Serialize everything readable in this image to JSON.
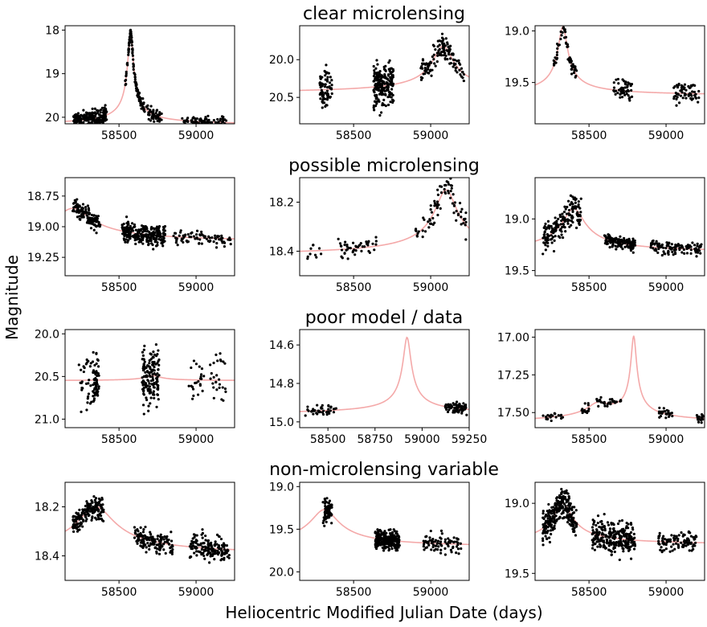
{
  "figure": {
    "ylabel": "Magnitude",
    "xlabel": "Heliocentric Modified Julian Date (days)",
    "row_titles": [
      "clear microlensing",
      "possible microlensing",
      "poor model / data",
      "non-microlensing variable"
    ]
  },
  "chart_data": [
    {
      "type": "scatter",
      "row": 0,
      "col": 0,
      "xlim": [
        58150,
        59250
      ],
      "ylim": [
        20.15,
        17.9
      ],
      "xticks": [
        58500,
        59000
      ],
      "yticks": [
        18,
        19,
        20
      ],
      "ytick_labels": [
        "18",
        "19",
        "20"
      ],
      "model": {
        "base": 20.18,
        "events": [
          {
            "t0": 58575,
            "amp": 2.1,
            "w": 30
          }
        ]
      },
      "segments": [
        {
          "x0": 58200,
          "x1": 58420,
          "n": 220,
          "scatter": 0.13
        },
        {
          "x0": 58540,
          "x1": 58660,
          "n": 120,
          "scatter": 0.08
        },
        {
          "x0": 58660,
          "x1": 58780,
          "n": 60,
          "scatter": 0.1
        },
        {
          "x0": 58900,
          "x1": 59200,
          "n": 90,
          "scatter": 0.08
        }
      ]
    },
    {
      "type": "scatter",
      "row": 0,
      "col": 1,
      "xlim": [
        58150,
        59250
      ],
      "ylim": [
        20.85,
        19.55
      ],
      "xticks": [
        58500,
        59000
      ],
      "yticks": [
        20.0,
        20.5
      ],
      "ytick_labels": [
        "20.0",
        "20.5"
      ],
      "model": {
        "base": 20.45,
        "events": [
          {
            "t0": 59080,
            "amp": 0.63,
            "w": 110
          }
        ]
      },
      "segments": [
        {
          "x0": 58280,
          "x1": 58360,
          "n": 70,
          "scatter": 0.2
        },
        {
          "x0": 58630,
          "x1": 58760,
          "n": 200,
          "scatter": 0.2
        },
        {
          "x0": 58930,
          "x1": 59220,
          "n": 130,
          "scatter": 0.1
        }
      ]
    },
    {
      "type": "scatter",
      "row": 0,
      "col": 2,
      "xlim": [
        58150,
        59250
      ],
      "ylim": [
        19.9,
        18.95
      ],
      "xticks": [
        58500,
        59000
      ],
      "yticks": [
        19.0,
        19.5
      ],
      "ytick_labels": [
        "19.0",
        "19.5"
      ],
      "model": {
        "base": 19.63,
        "events": [
          {
            "t0": 58330,
            "amp": 0.67,
            "w": 50
          }
        ]
      },
      "segments": [
        {
          "x0": 58270,
          "x1": 58420,
          "n": 60,
          "scatter": 0.05
        },
        {
          "x0": 58650,
          "x1": 58780,
          "n": 50,
          "scatter": 0.08
        },
        {
          "x0": 59050,
          "x1": 59220,
          "n": 60,
          "scatter": 0.08
        }
      ]
    },
    {
      "type": "scatter",
      "row": 1,
      "col": 0,
      "xlim": [
        58150,
        59250
      ],
      "ylim": [
        19.4,
        18.6
      ],
      "xticks": [
        58500,
        59000
      ],
      "yticks": [
        18.75,
        19.0,
        19.25
      ],
      "ytick_labels": [
        "18.75",
        "19.00",
        "19.25"
      ],
      "model": {
        "base": 19.13,
        "events": [
          {
            "t0": 58200,
            "amp": 0.28,
            "w": 200
          }
        ]
      },
      "segments": [
        {
          "x0": 58200,
          "x1": 58380,
          "n": 130,
          "scatter": 0.05
        },
        {
          "x0": 58520,
          "x1": 58800,
          "n": 260,
          "scatter": 0.06
        },
        {
          "x0": 58850,
          "x1": 59230,
          "n": 80,
          "scatter": 0.04
        }
      ]
    },
    {
      "type": "scatter",
      "row": 1,
      "col": 1,
      "xlim": [
        58150,
        59250
      ],
      "ylim": [
        18.5,
        18.1
      ],
      "xticks": [
        58500,
        59000
      ],
      "yticks": [
        18.2,
        18.4
      ],
      "ytick_labels": [
        "18.2",
        "18.4"
      ],
      "model": {
        "base": 18.42,
        "events": [
          {
            "t0": 59100,
            "amp": 0.27,
            "w": 120
          }
        ]
      },
      "segments": [
        {
          "x0": 58200,
          "x1": 58300,
          "n": 10,
          "scatter": 0.04
        },
        {
          "x0": 58400,
          "x1": 58650,
          "n": 45,
          "scatter": 0.03
        },
        {
          "x0": 58900,
          "x1": 59230,
          "n": 80,
          "scatter": 0.04
        }
      ]
    },
    {
      "type": "scatter",
      "row": 1,
      "col": 2,
      "xlim": [
        58150,
        59250
      ],
      "ylim": [
        19.55,
        18.6
      ],
      "xticks": [
        58500,
        59000
      ],
      "yticks": [
        19.0,
        19.5
      ],
      "ytick_labels": [
        "19.0",
        "19.5"
      ],
      "model": {
        "base": 19.33,
        "events": [
          {
            "t0": 58400,
            "amp": 0.43,
            "w": 120
          }
        ]
      },
      "segments": [
        {
          "x0": 58200,
          "x1": 58450,
          "n": 170,
          "scatter": 0.1
        },
        {
          "x0": 58600,
          "x1": 58800,
          "n": 140,
          "scatter": 0.04
        },
        {
          "x0": 58900,
          "x1": 59230,
          "n": 120,
          "scatter": 0.04
        }
      ]
    },
    {
      "type": "scatter",
      "row": 2,
      "col": 0,
      "xlim": [
        58150,
        59250
      ],
      "ylim": [
        21.1,
        19.95
      ],
      "xticks": [
        58500,
        59000
      ],
      "yticks": [
        20.0,
        20.5,
        21.0
      ],
      "ytick_labels": [
        "20.0",
        "20.5",
        "21.0"
      ],
      "model": {
        "base": 20.55,
        "events": [
          {
            "t0": 58720,
            "amp": 0.06,
            "w": 80
          }
        ]
      },
      "segments": [
        {
          "x0": 58240,
          "x1": 58330,
          "n": 30,
          "scatter": 0.25
        },
        {
          "x0": 58330,
          "x1": 58370,
          "n": 60,
          "scatter": 0.2
        },
        {
          "x0": 58650,
          "x1": 58760,
          "n": 150,
          "scatter": 0.25
        },
        {
          "x0": 58950,
          "x1": 59200,
          "n": 50,
          "scatter": 0.2
        }
      ]
    },
    {
      "type": "scatter",
      "row": 2,
      "col": 1,
      "xlim": [
        58350,
        59250
      ],
      "ylim": [
        15.03,
        14.52
      ],
      "xticks": [
        58500,
        58750,
        59000,
        59250
      ],
      "yticks": [
        14.6,
        14.8,
        15.0
      ],
      "ytick_labels": [
        "14.6",
        "14.8",
        "15.0"
      ],
      "model": {
        "base": 14.96,
        "events": [
          {
            "t0": 58920,
            "amp": 0.4,
            "w": 35
          }
        ]
      },
      "segments": [
        {
          "x0": 58380,
          "x1": 58550,
          "n": 40,
          "scatter": 0.02
        },
        {
          "x0": 59120,
          "x1": 59240,
          "n": 70,
          "scatter": 0.02
        }
      ]
    },
    {
      "type": "scatter",
      "row": 2,
      "col": 2,
      "xlim": [
        58150,
        59250
      ],
      "ylim": [
        17.6,
        16.95
      ],
      "xticks": [
        58500,
        59000
      ],
      "yticks": [
        17.0,
        17.25,
        17.5
      ],
      "ytick_labels": [
        "17.00",
        "17.25",
        "17.50"
      ],
      "model": {
        "base": 17.57,
        "events": [
          {
            "t0": 58790,
            "amp": 0.55,
            "w": 30
          },
          {
            "t0": 58560,
            "amp": 0.1,
            "w": 120
          }
        ]
      },
      "segments": [
        {
          "x0": 58200,
          "x1": 58330,
          "n": 20,
          "scatter": 0.02
        },
        {
          "x0": 58450,
          "x1": 58500,
          "n": 15,
          "scatter": 0.03
        },
        {
          "x0": 58550,
          "x1": 58720,
          "n": 30,
          "scatter": 0.02
        },
        {
          "x0": 58950,
          "x1": 59050,
          "n": 30,
          "scatter": 0.02
        },
        {
          "x0": 59200,
          "x1": 59240,
          "n": 20,
          "scatter": 0.02
        }
      ]
    },
    {
      "type": "scatter",
      "row": 3,
      "col": 0,
      "xlim": [
        58150,
        59250
      ],
      "ylim": [
        18.5,
        18.1
      ],
      "xticks": [
        58500,
        59000
      ],
      "yticks": [
        18.2,
        18.4
      ],
      "ytick_labels": [
        "18.2",
        "18.4"
      ],
      "model": {
        "base": 18.4,
        "events": [
          {
            "t0": 58350,
            "amp": 0.2,
            "w": 200
          }
        ]
      },
      "segments": [
        {
          "x0": 58200,
          "x1": 58400,
          "n": 180,
          "scatter": 0.03
        },
        {
          "x0": 58600,
          "x1": 58850,
          "n": 150,
          "scatter": 0.03
        },
        {
          "x0": 58950,
          "x1": 59220,
          "n": 160,
          "scatter": 0.04
        }
      ]
    },
    {
      "type": "scatter",
      "row": 3,
      "col": 1,
      "xlim": [
        58150,
        59250
      ],
      "ylim": [
        20.1,
        18.95
      ],
      "xticks": [
        58500,
        59000
      ],
      "yticks": [
        19.0,
        19.5,
        20.0
      ],
      "ytick_labels": [
        "19.0",
        "19.5",
        "20.0"
      ],
      "model": {
        "base": 19.72,
        "events": [
          {
            "t0": 58310,
            "amp": 0.45,
            "w": 150
          }
        ]
      },
      "segments": [
        {
          "x0": 58300,
          "x1": 58360,
          "n": 70,
          "scatter": 0.1
        },
        {
          "x0": 58640,
          "x1": 58800,
          "n": 250,
          "scatter": 0.08
        },
        {
          "x0": 58950,
          "x1": 59200,
          "n": 80,
          "scatter": 0.08
        }
      ]
    },
    {
      "type": "scatter",
      "row": 3,
      "col": 2,
      "xlim": [
        58150,
        59250
      ],
      "ylim": [
        19.55,
        18.85
      ],
      "xticks": [
        58500,
        59000
      ],
      "yticks": [
        19.0,
        19.5
      ],
      "ytick_labels": [
        "19.0",
        "19.5"
      ],
      "model": {
        "base": 19.3,
        "events": [
          {
            "t0": 58330,
            "amp": 0.3,
            "w": 100
          }
        ]
      },
      "segments": [
        {
          "x0": 58200,
          "x1": 58420,
          "n": 280,
          "scatter": 0.08
        },
        {
          "x0": 58520,
          "x1": 58800,
          "n": 260,
          "scatter": 0.08
        },
        {
          "x0": 58950,
          "x1": 59200,
          "n": 100,
          "scatter": 0.05
        }
      ]
    }
  ]
}
